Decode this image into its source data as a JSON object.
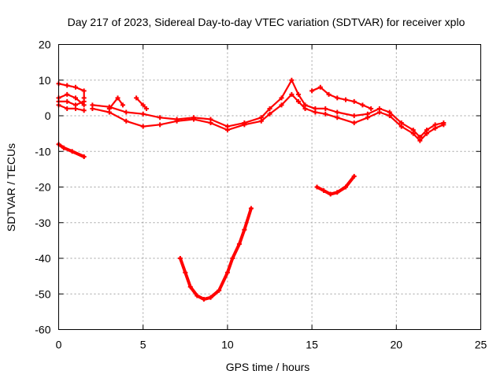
{
  "chart_data": {
    "type": "line",
    "title": "Day 217 of 2023, Sidereal Day-to-day VTEC variation (SDTVAR) for receiver xplo",
    "xlabel": "GPS time / hours",
    "ylabel": "SDTVAR / TECUs",
    "xlim": [
      0,
      25
    ],
    "ylim": [
      -60,
      20
    ],
    "xticks": [
      0,
      5,
      10,
      15,
      20,
      25
    ],
    "yticks": [
      -60,
      -50,
      -40,
      -30,
      -20,
      -10,
      0,
      10,
      20
    ],
    "grid": true,
    "color": "#ff0000",
    "series": [
      {
        "name": "main-trace-upper",
        "band": true,
        "points": [
          [
            2.0,
            3.0
          ],
          [
            3.0,
            2.5
          ],
          [
            4.0,
            1.0
          ],
          [
            5.0,
            0.5
          ],
          [
            6.0,
            -0.5
          ],
          [
            7.0,
            -1.0
          ],
          [
            8.0,
            -0.5
          ],
          [
            9.0,
            -1.0
          ],
          [
            10.0,
            -3.0
          ],
          [
            11.0,
            -2.0
          ],
          [
            12.0,
            -0.5
          ],
          [
            12.5,
            2.0
          ],
          [
            13.2,
            5.0
          ],
          [
            13.8,
            10.0
          ],
          [
            14.2,
            6.0
          ],
          [
            14.6,
            3.0
          ],
          [
            15.2,
            2.0
          ],
          [
            15.8,
            2.0
          ],
          [
            16.5,
            1.0
          ],
          [
            17.5,
            0.0
          ],
          [
            18.3,
            0.5
          ],
          [
            19.0,
            2.0
          ],
          [
            19.6,
            1.0
          ],
          [
            20.3,
            -2.0
          ],
          [
            21.0,
            -4.0
          ],
          [
            21.4,
            -6.0
          ],
          [
            21.8,
            -4.0
          ],
          [
            22.3,
            -2.5
          ],
          [
            22.8,
            -2.0
          ]
        ]
      },
      {
        "name": "main-trace-lower",
        "band": true,
        "points": [
          [
            2.0,
            2.0
          ],
          [
            3.0,
            1.0
          ],
          [
            4.0,
            -1.5
          ],
          [
            5.0,
            -3.0
          ],
          [
            6.0,
            -2.5
          ],
          [
            7.0,
            -1.5
          ],
          [
            8.0,
            -1.0
          ],
          [
            9.0,
            -2.0
          ],
          [
            10.0,
            -4.0
          ],
          [
            11.0,
            -2.5
          ],
          [
            12.0,
            -1.5
          ],
          [
            12.5,
            0.5
          ],
          [
            13.2,
            3.0
          ],
          [
            13.8,
            6.0
          ],
          [
            14.2,
            4.0
          ],
          [
            14.6,
            2.0
          ],
          [
            15.2,
            1.0
          ],
          [
            15.8,
            0.5
          ],
          [
            16.5,
            -0.5
          ],
          [
            17.5,
            -2.0
          ],
          [
            18.3,
            -0.5
          ],
          [
            19.0,
            1.0
          ],
          [
            19.6,
            0.0
          ],
          [
            20.3,
            -3.0
          ],
          [
            21.0,
            -5.0
          ],
          [
            21.4,
            -7.0
          ],
          [
            21.8,
            -5.0
          ],
          [
            22.3,
            -3.5
          ],
          [
            22.8,
            -2.5
          ]
        ]
      },
      {
        "name": "early-cluster-a",
        "band": true,
        "points": [
          [
            0.0,
            9.0
          ],
          [
            0.5,
            8.5
          ],
          [
            1.0,
            8.0
          ],
          [
            1.5,
            7.0
          ],
          [
            1.5,
            5.0
          ]
        ]
      },
      {
        "name": "early-cluster-b",
        "band": true,
        "points": [
          [
            0.0,
            4.0
          ],
          [
            0.5,
            4.0
          ],
          [
            1.0,
            3.0
          ],
          [
            1.5,
            4.0
          ]
        ]
      },
      {
        "name": "early-cluster-c",
        "band": true,
        "points": [
          [
            0.0,
            3.0
          ],
          [
            0.5,
            2.0
          ],
          [
            1.0,
            2.0
          ],
          [
            1.5,
            1.5
          ]
        ]
      },
      {
        "name": "early-cluster-d",
        "band": true,
        "points": [
          [
            0.0,
            5.0
          ],
          [
            0.5,
            6.0
          ],
          [
            1.0,
            5.0
          ],
          [
            1.5,
            3.0
          ]
        ]
      },
      {
        "name": "spike-3.5",
        "band": true,
        "points": [
          [
            3.0,
            2.0
          ],
          [
            3.5,
            5.0
          ],
          [
            3.8,
            3.0
          ]
        ]
      },
      {
        "name": "spike-4.8",
        "band": true,
        "points": [
          [
            4.6,
            5.0
          ],
          [
            5.0,
            3.0
          ],
          [
            5.2,
            2.0
          ]
        ]
      },
      {
        "name": "late-upper",
        "band": true,
        "points": [
          [
            15.0,
            7.0
          ],
          [
            15.5,
            8.0
          ],
          [
            16.0,
            6.0
          ],
          [
            16.5,
            5.0
          ],
          [
            17.0,
            4.5
          ],
          [
            17.5,
            4.0
          ],
          [
            18.0,
            3.0
          ],
          [
            18.5,
            2.0
          ]
        ]
      },
      {
        "name": "early-negative",
        "band": false,
        "points": [
          [
            0.0,
            -8.0
          ],
          [
            0.3,
            -9.0
          ],
          [
            0.8,
            -10.0
          ],
          [
            1.5,
            -11.5
          ]
        ]
      },
      {
        "name": "u-shaped-dip",
        "band": false,
        "points": [
          [
            7.2,
            -40.0
          ],
          [
            7.5,
            -44.0
          ],
          [
            7.8,
            -48.0
          ],
          [
            8.2,
            -50.5
          ],
          [
            8.6,
            -51.5
          ],
          [
            9.0,
            -51.0
          ],
          [
            9.5,
            -49.0
          ],
          [
            10.0,
            -44.0
          ],
          [
            10.3,
            -40.0
          ],
          [
            10.7,
            -36.0
          ],
          [
            11.0,
            -32.0
          ],
          [
            11.4,
            -26.0
          ]
        ]
      },
      {
        "name": "negative-segment",
        "band": false,
        "points": [
          [
            15.3,
            -20.0
          ],
          [
            15.7,
            -21.0
          ],
          [
            16.1,
            -22.0
          ],
          [
            16.5,
            -21.5
          ],
          [
            17.0,
            -20.0
          ],
          [
            17.5,
            -17.0
          ]
        ]
      }
    ]
  }
}
